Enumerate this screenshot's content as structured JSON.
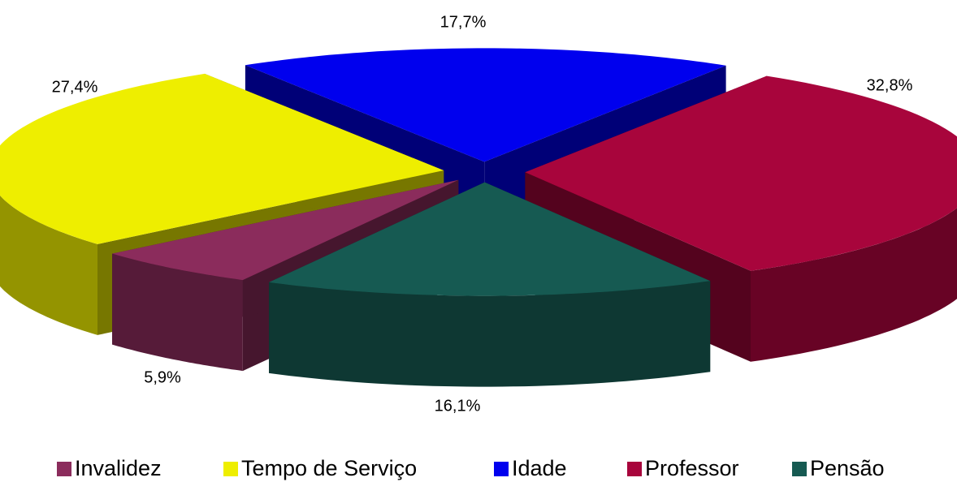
{
  "chart_data": {
    "type": "pie3d",
    "categories": [
      "Invalidez",
      "Tempo de Serviço",
      "Idade",
      "Professor",
      "Pensão"
    ],
    "values": [
      5.9,
      27.4,
      17.7,
      32.8,
      16.1
    ],
    "value_labels": [
      "5,9%",
      "27,4%",
      "17,7%",
      "32,8%",
      "16,1%"
    ],
    "colors": [
      "#8b2c5c",
      "#eeee00",
      "#0000ee",
      "#a8053c",
      "#165a52"
    ],
    "legend": "bottom"
  }
}
